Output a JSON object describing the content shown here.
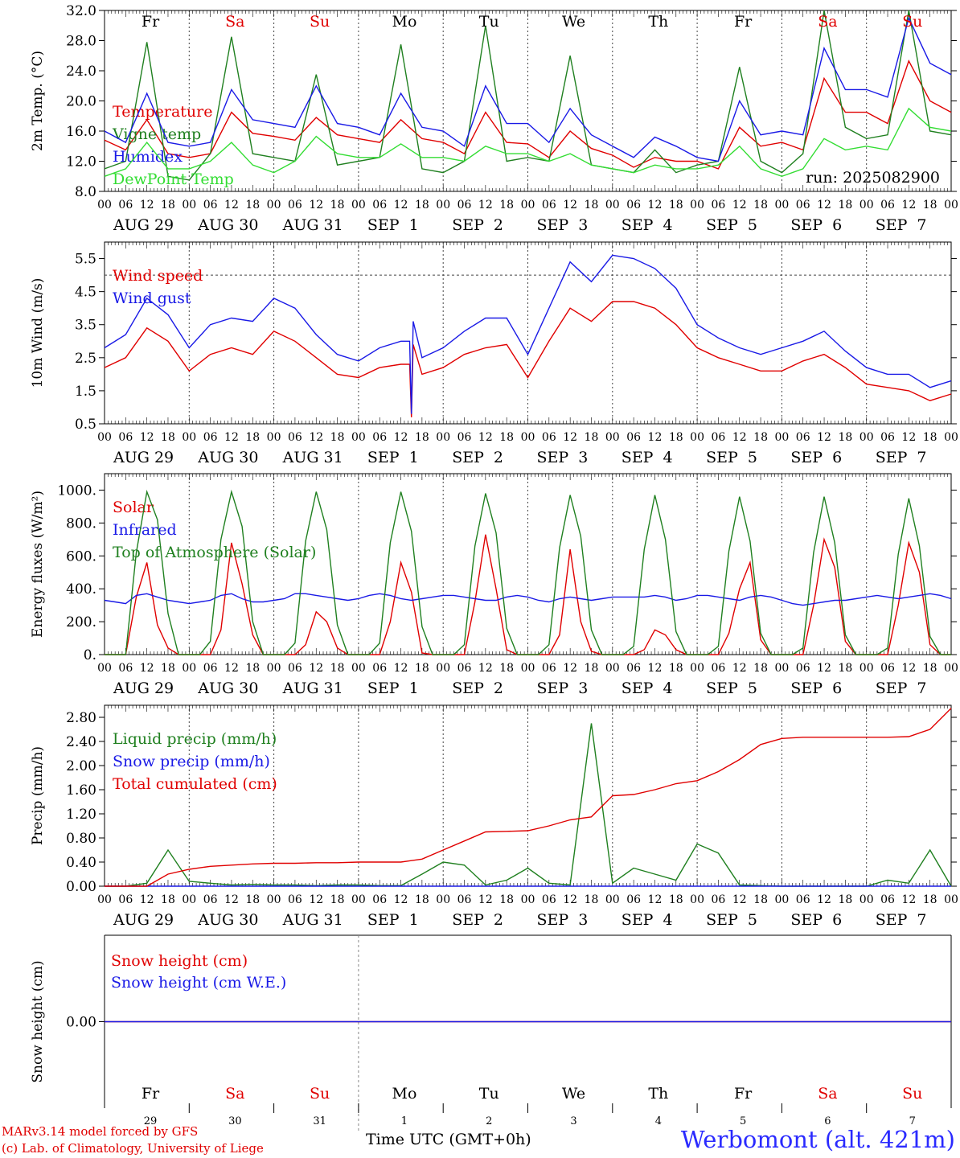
{
  "colors": {
    "red": "#e00000",
    "green": "#208020",
    "blue": "#1a1ae6",
    "lightgreen": "#33dd33",
    "weekday": "#000000",
    "weekend": "#e00000"
  },
  "days": {
    "weekday_names": [
      "Fr",
      "Sa",
      "Su",
      "Mo",
      "Tu",
      "We",
      "Th",
      "Fr",
      "Sa",
      "Su"
    ],
    "weekend_flags": [
      false,
      true,
      true,
      false,
      false,
      false,
      false,
      false,
      true,
      true
    ],
    "date_labels": [
      "AUG 29",
      "AUG 30",
      "AUG 31",
      "SEP  1",
      "SEP  2",
      "SEP  3",
      "SEP  4",
      "SEP  5",
      "SEP  6",
      "SEP  7"
    ],
    "day_numbers": [
      "29",
      "30",
      "31",
      "1",
      "2",
      "3",
      "4",
      "5",
      "6",
      "7"
    ],
    "hour_ticks": [
      "00",
      "06",
      "12",
      "18"
    ],
    "end_tick": "00"
  },
  "footer": {
    "model_line": "MARv3.14 model forced by GFS",
    "copyright_line": "(c) Lab. of Climatology, University of Liege",
    "time_axis_label": "Time UTC (GMT+0h)",
    "station": "Werbomont (alt. 421m)"
  },
  "chart_data": [
    {
      "type": "line",
      "ylabel": "2m Temp. (°C)",
      "ylim": [
        8,
        32
      ],
      "yticks": [
        "8.0",
        "12.0",
        "16.0",
        "20.0",
        "24.0",
        "28.0",
        "32.0"
      ],
      "annotation": "run: 2025082900",
      "x_hours": [
        0,
        6,
        12,
        18,
        24,
        30,
        36,
        42,
        48,
        54,
        60,
        66,
        72,
        78,
        84,
        90,
        96,
        102,
        108,
        114,
        120,
        126,
        132,
        138,
        144,
        150,
        156,
        162,
        168,
        174,
        180,
        186,
        192,
        198,
        204,
        210,
        216,
        222,
        228,
        234,
        240
      ],
      "series": [
        {
          "name": "Temperature",
          "color": "red",
          "values": [
            14.8,
            13.5,
            17.5,
            13.0,
            12.5,
            13.0,
            18.5,
            15.7,
            15.3,
            14.8,
            17.8,
            15.5,
            15.0,
            14.5,
            17.5,
            15.0,
            14.5,
            13.0,
            18.5,
            14.5,
            14.3,
            12.5,
            16.0,
            13.7,
            12.8,
            11.2,
            12.5,
            12.0,
            12.0,
            11.0,
            16.5,
            14.0,
            14.5,
            13.5,
            23.0,
            18.5,
            18.5,
            17.0,
            25.3,
            20.0,
            18.5
          ]
        },
        {
          "name": "Vigne temp",
          "color": "green",
          "values": [
            11.0,
            12.0,
            27.8,
            10.0,
            9.5,
            13.0,
            28.5,
            13.0,
            12.5,
            12.0,
            23.5,
            11.5,
            12.0,
            12.5,
            27.5,
            11.0,
            10.5,
            12.0,
            30.0,
            12.0,
            12.5,
            12.0,
            26.0,
            11.5,
            11.0,
            10.5,
            13.5,
            10.5,
            11.5,
            12.0,
            24.5,
            12.0,
            10.5,
            13.0,
            32.0,
            16.5,
            15.0,
            15.5,
            32.0,
            16.0,
            15.5
          ]
        },
        {
          "name": "Humidex",
          "color": "blue",
          "values": [
            16.0,
            14.5,
            21.0,
            14.5,
            14.0,
            14.5,
            21.5,
            17.5,
            17.0,
            16.5,
            22.0,
            17.0,
            16.5,
            15.5,
            21.0,
            16.5,
            16.0,
            14.0,
            22.0,
            17.0,
            17.0,
            14.5,
            19.0,
            15.5,
            14.0,
            12.5,
            15.2,
            14.0,
            12.5,
            12.0,
            20.0,
            15.5,
            16.0,
            15.5,
            27.0,
            21.5,
            21.5,
            20.5,
            31.0,
            25.0,
            23.5
          ]
        },
        {
          "name": "DewPoint Temp",
          "color": "lightgreen",
          "values": [
            10.0,
            11.0,
            14.5,
            11.0,
            11.0,
            12.0,
            14.5,
            11.5,
            10.5,
            12.0,
            15.3,
            13.0,
            12.5,
            12.5,
            14.3,
            12.5,
            12.5,
            12.0,
            14.0,
            13.0,
            13.0,
            12.0,
            13.0,
            11.5,
            11.0,
            10.5,
            11.5,
            11.0,
            11.0,
            11.5,
            14.0,
            11.0,
            10.0,
            11.0,
            15.0,
            13.5,
            14.0,
            13.5,
            19.0,
            16.5,
            16.0
          ]
        }
      ],
      "x_grid_dashed": true
    },
    {
      "type": "line",
      "ylabel": "10m Wind (m/s)",
      "ylim": [
        0.5,
        6.0
      ],
      "yticks": [
        "0.5",
        "1.5",
        "2.5",
        "3.5",
        "4.5",
        "5.5"
      ],
      "reference_line": 5.0,
      "x_hours": [
        0,
        6,
        12,
        18,
        24,
        30,
        36,
        42,
        48,
        54,
        60,
        66,
        72,
        78,
        84,
        90,
        96,
        102,
        108,
        114,
        120,
        126,
        132,
        138,
        144,
        150,
        156,
        162,
        168,
        174,
        180,
        186,
        192,
        198,
        204,
        210,
        216,
        222,
        228,
        234,
        240
      ],
      "series": [
        {
          "name": "Wind speed",
          "color": "red",
          "values": [
            2.2,
            2.5,
            3.4,
            3.0,
            2.1,
            2.6,
            2.8,
            2.6,
            3.3,
            3.0,
            2.5,
            2.0,
            1.9,
            2.2,
            2.3,
            2.0,
            2.2,
            2.6,
            2.8,
            2.9,
            1.9,
            3.0,
            4.0,
            3.6,
            4.2,
            4.2,
            4.0,
            3.5,
            2.8,
            2.5,
            2.3,
            2.1,
            2.1,
            2.4,
            2.6,
            2.2,
            1.7,
            1.6,
            1.5,
            1.2,
            1.4
          ]
        },
        {
          "name": "Wind gust",
          "color": "blue",
          "values": [
            2.8,
            3.2,
            4.3,
            3.8,
            2.8,
            3.5,
            3.7,
            3.6,
            4.3,
            4.0,
            3.2,
            2.6,
            2.4,
            2.8,
            3.0,
            2.5,
            2.8,
            3.3,
            3.7,
            3.7,
            2.6,
            4.0,
            5.4,
            4.8,
            5.6,
            5.5,
            5.2,
            4.6,
            3.5,
            3.1,
            2.8,
            2.6,
            2.8,
            3.0,
            3.3,
            2.7,
            2.2,
            2.0,
            2.0,
            1.6,
            1.8
          ]
        }
      ],
      "spike": {
        "hour": 87,
        "wind_speed": 0.7,
        "wind_gust": 0.8
      }
    },
    {
      "type": "line",
      "ylabel": "Energy fluxes (W/m²)",
      "ylim": [
        0,
        1100
      ],
      "yticks": [
        "0.",
        "200.",
        "400.",
        "600.",
        "800.",
        "1000."
      ],
      "x_hours": [
        0,
        3,
        6,
        9,
        12,
        15,
        18,
        21,
        24,
        27,
        30,
        33,
        36,
        39,
        42,
        45,
        48,
        51,
        54,
        57,
        60,
        63,
        66,
        69,
        72,
        75,
        78,
        81,
        84,
        87,
        90,
        93,
        96,
        99,
        102,
        105,
        108,
        111,
        114,
        117,
        120,
        123,
        126,
        129,
        132,
        135,
        138,
        141,
        144,
        147,
        150,
        153,
        156,
        159,
        162,
        165,
        168,
        171,
        174,
        177,
        180,
        183,
        186,
        189,
        192,
        195,
        198,
        201,
        204,
        207,
        210,
        213,
        216,
        219,
        222,
        225,
        228,
        231,
        234,
        237,
        240
      ],
      "series": [
        {
          "name": "Solar",
          "color": "red",
          "values": [
            0,
            0,
            0,
            350,
            560,
            180,
            40,
            0,
            0,
            0,
            0,
            150,
            680,
            430,
            120,
            0,
            0,
            0,
            0,
            60,
            260,
            200,
            40,
            0,
            0,
            0,
            0,
            200,
            560,
            380,
            10,
            0,
            0,
            0,
            0,
            320,
            730,
            400,
            30,
            0,
            0,
            0,
            0,
            120,
            640,
            200,
            20,
            0,
            0,
            0,
            0,
            30,
            150,
            120,
            30,
            0,
            0,
            0,
            0,
            130,
            400,
            560,
            90,
            0,
            0,
            0,
            0,
            300,
            700,
            530,
            80,
            0,
            0,
            0,
            0,
            300,
            680,
            500,
            60,
            0,
            0
          ]
        },
        {
          "name": "Infrared",
          "color": "blue",
          "values": [
            330,
            320,
            310,
            360,
            370,
            350,
            330,
            320,
            310,
            320,
            330,
            360,
            370,
            340,
            320,
            320,
            330,
            340,
            370,
            370,
            360,
            350,
            340,
            330,
            340,
            360,
            370,
            360,
            340,
            330,
            340,
            350,
            360,
            360,
            350,
            340,
            330,
            330,
            350,
            360,
            350,
            330,
            320,
            340,
            350,
            340,
            330,
            340,
            350,
            350,
            350,
            350,
            360,
            350,
            330,
            340,
            360,
            360,
            350,
            340,
            330,
            350,
            360,
            350,
            330,
            310,
            300,
            310,
            320,
            330,
            330,
            340,
            350,
            360,
            350,
            340,
            350,
            360,
            370,
            360,
            340
          ]
        },
        {
          "name": "Top of Atmosphere (Solar)",
          "color": "green",
          "values": [
            0,
            0,
            0,
            620,
            990,
            820,
            250,
            0,
            0,
            0,
            80,
            700,
            990,
            780,
            200,
            0,
            0,
            0,
            70,
            690,
            990,
            760,
            180,
            0,
            0,
            0,
            70,
            680,
            990,
            750,
            170,
            0,
            0,
            0,
            60,
            660,
            980,
            740,
            160,
            0,
            0,
            0,
            60,
            650,
            970,
            720,
            150,
            0,
            0,
            0,
            50,
            640,
            970,
            700,
            140,
            0,
            0,
            0,
            50,
            630,
            960,
            690,
            130,
            0,
            0,
            0,
            40,
            620,
            960,
            680,
            120,
            0,
            0,
            0,
            40,
            610,
            950,
            660,
            110,
            0,
            0
          ]
        }
      ]
    },
    {
      "type": "line",
      "ylabel": "Precip (mm/h)",
      "ylim": [
        0,
        3.0
      ],
      "yticks": [
        "0.00",
        "0.40",
        "0.80",
        "1.20",
        "1.60",
        "2.00",
        "2.40",
        "2.80"
      ],
      "x_hours": [
        0,
        6,
        12,
        18,
        24,
        30,
        36,
        42,
        48,
        54,
        60,
        66,
        72,
        78,
        84,
        90,
        96,
        102,
        108,
        114,
        120,
        126,
        132,
        138,
        144,
        150,
        156,
        162,
        168,
        174,
        180,
        186,
        192,
        198,
        204,
        210,
        216,
        222,
        228,
        234,
        240
      ],
      "series": [
        {
          "name": "Liquid precip (mm/h)",
          "color": "green",
          "values": [
            0,
            0,
            0.05,
            0.6,
            0.08,
            0.05,
            0.02,
            0.03,
            0.02,
            0.02,
            0.01,
            0.02,
            0.02,
            0.01,
            0.01,
            0.2,
            0.4,
            0.35,
            0.02,
            0.1,
            0.3,
            0.05,
            0.02,
            2.7,
            0.05,
            0.3,
            0.2,
            0.1,
            0.7,
            0.55,
            0.02,
            0.01,
            0,
            0,
            0,
            0,
            0,
            0.1,
            0.05,
            0.6,
            0
          ]
        },
        {
          "name": "Snow precip (mm/h)",
          "color": "blue",
          "values": [
            0,
            0,
            0,
            0,
            0,
            0,
            0,
            0,
            0,
            0,
            0,
            0,
            0,
            0,
            0,
            0,
            0,
            0,
            0,
            0,
            0,
            0,
            0,
            0,
            0,
            0,
            0,
            0,
            0,
            0,
            0,
            0,
            0,
            0,
            0,
            0,
            0,
            0,
            0,
            0,
            0
          ]
        },
        {
          "name": "Total cumulated (cm)",
          "color": "red",
          "values": [
            0,
            0,
            0,
            0.2,
            0.28,
            0.33,
            0.35,
            0.37,
            0.38,
            0.38,
            0.39,
            0.39,
            0.4,
            0.4,
            0.4,
            0.45,
            0.6,
            0.75,
            0.9,
            0.91,
            0.92,
            1.0,
            1.1,
            1.15,
            1.5,
            1.52,
            1.6,
            1.7,
            1.75,
            1.9,
            2.1,
            2.35,
            2.45,
            2.47,
            2.47,
            2.47,
            2.47,
            2.47,
            2.48,
            2.6,
            2.95
          ]
        }
      ]
    },
    {
      "type": "line",
      "ylabel": "Snow height (cm)",
      "ylim": [
        -1,
        1
      ],
      "yticks": [
        "0.00"
      ],
      "x_hours": [
        0,
        240
      ],
      "series": [
        {
          "name": "Snow height (cm)",
          "color": "red",
          "values": [
            0,
            0
          ]
        },
        {
          "name": "Snow height (cm W.E.)",
          "color": "blue",
          "values": [
            0,
            0
          ]
        }
      ]
    }
  ]
}
